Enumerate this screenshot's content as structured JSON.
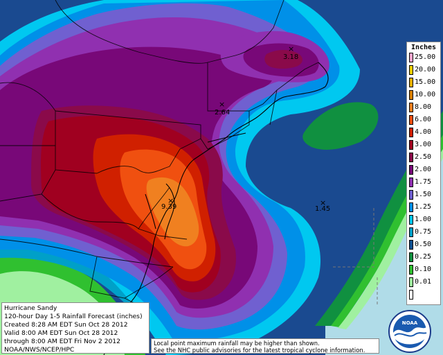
{
  "legend": {
    "title": "Inches",
    "entries": [
      {
        "label": "25.00",
        "color": "#f7a8d0"
      },
      {
        "label": "20.00",
        "color": "#f0d000"
      },
      {
        "label": "15.00",
        "color": "#e8b000"
      },
      {
        "label": "10.00",
        "color": "#d98000"
      },
      {
        "label": "8.00",
        "color": "#f08020"
      },
      {
        "label": "6.00",
        "color": "#f05010"
      },
      {
        "label": "4.00",
        "color": "#d02000"
      },
      {
        "label": "3.00",
        "color": "#a00020"
      },
      {
        "label": "2.50",
        "color": "#8a0a4a"
      },
      {
        "label": "2.00",
        "color": "#780878"
      },
      {
        "label": "1.75",
        "color": "#9030b0"
      },
      {
        "label": "1.50",
        "color": "#7060d0"
      },
      {
        "label": "1.25",
        "color": "#0090e8"
      },
      {
        "label": "1.00",
        "color": "#00c8f0"
      },
      {
        "label": "0.75",
        "color": "#00a0c8"
      },
      {
        "label": "0.50",
        "color": "#105090"
      },
      {
        "label": "0.25",
        "color": "#109040"
      },
      {
        "label": "0.10",
        "color": "#30c030"
      },
      {
        "label": "0.01",
        "color": "#a0f0a0"
      },
      {
        "label": "",
        "color": "#ffffff"
      }
    ]
  },
  "info": {
    "lines": [
      "Hurricane Sandy",
      "120-hour Day 1-5 Rainfall Forecast (inches)",
      "Created 8:28 AM EDT Sun Oct 28 2012",
      "Valid 8:00 AM EDT Sun Oct 28 2012",
      "through 8:00 AM EDT Fri Nov 2 2012",
      "NOAA/NWS/NCEP/HPC"
    ]
  },
  "notice": {
    "lines": [
      "Local point maximum rainfall may be higher than shown.",
      "See the NHC public advisories for the latest tropical cyclone information."
    ]
  },
  "maxima": [
    {
      "value": "3.18",
      "mark": "×"
    },
    {
      "value": "2.64",
      "mark": "×"
    },
    {
      "value": "9.39",
      "mark": "×"
    },
    {
      "value": "1.45",
      "mark": "×"
    }
  ],
  "logo": {
    "text": "NOAA"
  }
}
